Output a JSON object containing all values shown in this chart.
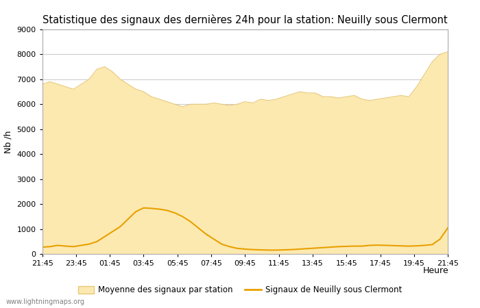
{
  "title": "Statistique des signaux des dernières 24h pour la station: Neuilly sous Clermont",
  "xlabel": "Heure",
  "ylabel": "Nb /h",
  "watermark": "www.lightningmaps.org",
  "legend_avg": "Moyenne des signaux par station",
  "legend_station": "Signaux de Neuilly sous Clermont",
  "x_labels": [
    "21:45",
    "23:45",
    "01:45",
    "03:45",
    "05:45",
    "07:45",
    "09:45",
    "11:45",
    "13:45",
    "15:45",
    "17:45",
    "19:45",
    "21:45"
  ],
  "ylim": [
    0,
    9000
  ],
  "yticks": [
    0,
    1000,
    2000,
    3000,
    4000,
    5000,
    6000,
    7000,
    8000,
    9000
  ],
  "avg_color": "#fce9b0",
  "avg_edge_color": "#e8c878",
  "station_color": "#e8a000",
  "bg_color": "#ffffff",
  "plot_bg_color": "#ffffff",
  "grid_color": "#cccccc",
  "title_fontsize": 10.5,
  "avg_data": [
    6800,
    6900,
    6800,
    6700,
    6600,
    6800,
    7000,
    7400,
    7500,
    7300,
    7000,
    6800,
    6600,
    6500,
    6300,
    6200,
    6100,
    6000,
    5900,
    6000,
    6000,
    6000,
    6050,
    6000,
    5950,
    6000,
    6100,
    6050,
    6200,
    6150,
    6200,
    6300,
    6400,
    6500,
    6450,
    6450,
    6300,
    6300,
    6250,
    6300,
    6350,
    6200,
    6150,
    6200,
    6250,
    6300,
    6350,
    6300,
    6700,
    7200,
    7700,
    8000,
    8100
  ],
  "station_data": [
    280,
    300,
    350,
    320,
    300,
    350,
    400,
    500,
    700,
    900,
    1100,
    1400,
    1700,
    1850,
    1830,
    1800,
    1750,
    1650,
    1500,
    1300,
    1050,
    800,
    600,
    400,
    300,
    230,
    200,
    180,
    170,
    160,
    160,
    170,
    180,
    200,
    220,
    240,
    260,
    280,
    300,
    310,
    320,
    320,
    350,
    360,
    350,
    340,
    330,
    320,
    330,
    350,
    380,
    600,
    1050
  ]
}
